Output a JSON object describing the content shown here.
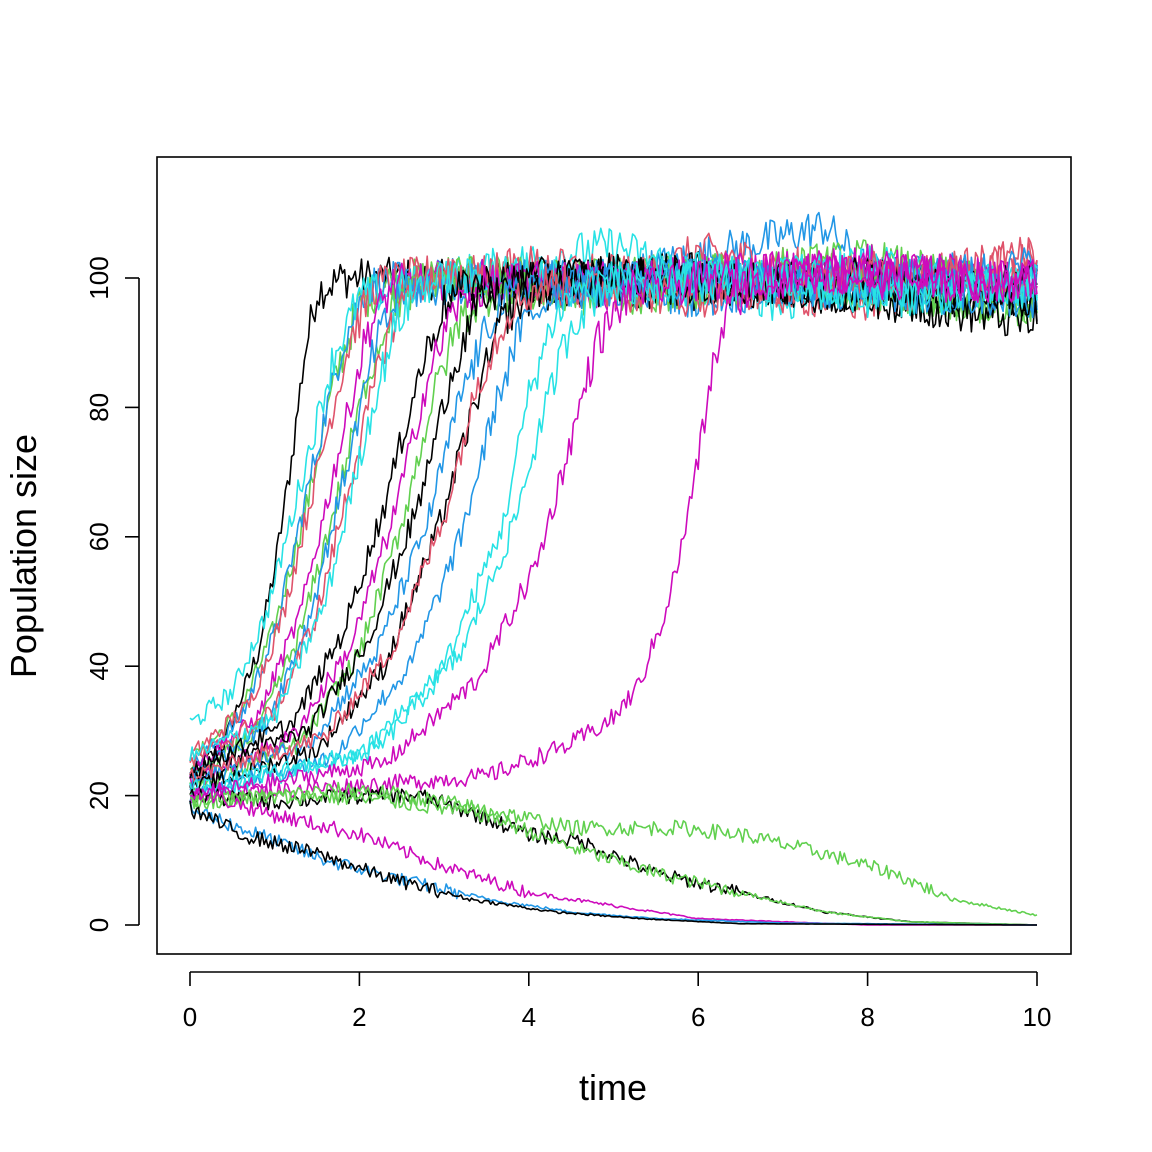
{
  "chart_data": {
    "type": "line",
    "title": "",
    "xlabel": "time",
    "ylabel": "Population size",
    "xlim": [
      0,
      10
    ],
    "ylim": [
      -4.5,
      118.5
    ],
    "x_ticks": [
      0,
      2,
      4,
      6,
      8,
      10
    ],
    "y_ticks": [
      0,
      20,
      40,
      60,
      80,
      100
    ],
    "x_tick_labels": [
      "0",
      "2",
      "4",
      "6",
      "8",
      "10"
    ],
    "y_tick_labels": [
      "0",
      "20",
      "40",
      "60",
      "80",
      "100"
    ],
    "grid": false,
    "legend": "none",
    "palette": [
      "#000000",
      "#DF536B",
      "#61D04F",
      "#2297E6",
      "#28E2E5",
      "#CD0BBC"
    ],
    "series": [
      {
        "color": "#000000",
        "values": [
          [
            0,
            23
          ],
          [
            0.4,
            28
          ],
          [
            0.8,
            42
          ],
          [
            1.0,
            55
          ],
          [
            1.2,
            72
          ],
          [
            1.35,
            88
          ],
          [
            1.5,
            98
          ],
          [
            1.8,
            100
          ],
          [
            2.5,
            100
          ],
          [
            4,
            99
          ],
          [
            6,
            98
          ],
          [
            8,
            100
          ],
          [
            10,
            97
          ]
        ]
      },
      {
        "color": "#61D04F",
        "values": [
          [
            0,
            25
          ],
          [
            0.6,
            33
          ],
          [
            1.0,
            46
          ],
          [
            1.4,
            66
          ],
          [
            1.7,
            84
          ],
          [
            2.0,
            96
          ],
          [
            2.4,
            100
          ],
          [
            4,
            99
          ],
          [
            6,
            101
          ],
          [
            8,
            98
          ],
          [
            10,
            96
          ]
        ]
      },
      {
        "color": "#2297E6",
        "values": [
          [
            0,
            24
          ],
          [
            0.6,
            32
          ],
          [
            1.0,
            45
          ],
          [
            1.4,
            68
          ],
          [
            1.8,
            90
          ],
          [
            2.1,
            99
          ],
          [
            3,
            100
          ],
          [
            5,
            100
          ],
          [
            7.5,
            108
          ],
          [
            8,
            101
          ],
          [
            10,
            99
          ]
        ]
      },
      {
        "color": "#DF536B",
        "values": [
          [
            0,
            26
          ],
          [
            0.7,
            34
          ],
          [
            1.1,
            48
          ],
          [
            1.5,
            70
          ],
          [
            1.9,
            91
          ],
          [
            2.2,
            99
          ],
          [
            3,
            101
          ],
          [
            5,
            98
          ],
          [
            6,
            104
          ],
          [
            8,
            100
          ],
          [
            10,
            103
          ]
        ]
      },
      {
        "color": "#28E2E5",
        "values": [
          [
            0,
            31
          ],
          [
            0.5,
            36
          ],
          [
            0.9,
            48
          ],
          [
            1.3,
            68
          ],
          [
            1.7,
            88
          ],
          [
            2.0,
            97
          ],
          [
            3,
            100
          ],
          [
            5,
            105
          ],
          [
            7,
            96
          ],
          [
            8,
            99
          ],
          [
            10,
            100
          ]
        ]
      },
      {
        "color": "#CD0BBC",
        "values": [
          [
            0,
            24
          ],
          [
            0.8,
            32
          ],
          [
            1.3,
            48
          ],
          [
            1.7,
            70
          ],
          [
            2.1,
            92
          ],
          [
            2.4,
            99
          ],
          [
            3.5,
            100
          ],
          [
            5,
            98
          ],
          [
            7,
            101
          ],
          [
            10,
            99
          ]
        ]
      },
      {
        "color": "#61D04F",
        "values": [
          [
            0,
            22
          ],
          [
            0.8,
            30
          ],
          [
            1.3,
            45
          ],
          [
            1.7,
            64
          ],
          [
            2.1,
            85
          ],
          [
            2.4,
            96
          ],
          [
            3,
            101
          ],
          [
            5,
            99
          ],
          [
            8,
            103
          ],
          [
            10,
            97
          ]
        ]
      },
      {
        "color": "#2297E6",
        "values": [
          [
            0,
            23
          ],
          [
            0.9,
            31
          ],
          [
            1.4,
            47
          ],
          [
            1.8,
            68
          ],
          [
            2.2,
            90
          ],
          [
            2.5,
            98
          ],
          [
            4,
            100
          ],
          [
            6,
            97
          ],
          [
            9,
            101
          ],
          [
            10,
            98
          ]
        ]
      },
      {
        "color": "#DF536B",
        "values": [
          [
            0,
            25
          ],
          [
            1.0,
            33
          ],
          [
            1.5,
            48
          ],
          [
            1.9,
            69
          ],
          [
            2.3,
            90
          ],
          [
            2.6,
            99
          ],
          [
            4,
            102
          ],
          [
            6,
            99
          ],
          [
            8,
            96
          ],
          [
            10,
            104
          ]
        ]
      },
      {
        "color": "#28E2E5",
        "values": [
          [
            0,
            26
          ],
          [
            1.0,
            32
          ],
          [
            1.6,
            50
          ],
          [
            2.0,
            72
          ],
          [
            2.4,
            92
          ],
          [
            2.7,
            99
          ],
          [
            4,
            101
          ],
          [
            6,
            98
          ],
          [
            8,
            102
          ],
          [
            10,
            98
          ]
        ]
      },
      {
        "color": "#000000",
        "values": [
          [
            0,
            24
          ],
          [
            1.2,
            31
          ],
          [
            1.8,
            45
          ],
          [
            2.3,
            65
          ],
          [
            2.7,
            85
          ],
          [
            3.0,
            96
          ],
          [
            3.3,
            99
          ],
          [
            5,
            101
          ],
          [
            7,
            98
          ],
          [
            9,
            97
          ],
          [
            10,
            101
          ]
        ]
      },
      {
        "color": "#CD0BBC",
        "values": [
          [
            0,
            22
          ],
          [
            1.2,
            29
          ],
          [
            1.9,
            43
          ],
          [
            2.4,
            63
          ],
          [
            2.8,
            84
          ],
          [
            3.1,
            95
          ],
          [
            3.5,
            99
          ],
          [
            5,
            100
          ],
          [
            8,
            102
          ],
          [
            10,
            99
          ]
        ]
      },
      {
        "color": "#61D04F",
        "values": [
          [
            0,
            21
          ],
          [
            1.3,
            28
          ],
          [
            2.0,
            42
          ],
          [
            2.5,
            62
          ],
          [
            2.9,
            83
          ],
          [
            3.2,
            94
          ],
          [
            3.6,
            98
          ],
          [
            5,
            97
          ],
          [
            7,
            100
          ],
          [
            10,
            95
          ]
        ]
      },
      {
        "color": "#000000",
        "values": [
          [
            0,
            23
          ],
          [
            1.4,
            30
          ],
          [
            2.1,
            44
          ],
          [
            2.7,
            65
          ],
          [
            3.1,
            86
          ],
          [
            3.4,
            96
          ],
          [
            3.8,
            99
          ],
          [
            6,
            101
          ],
          [
            8,
            97
          ],
          [
            10,
            93
          ]
        ]
      },
      {
        "color": "#2297E6",
        "values": [
          [
            0,
            22
          ],
          [
            1.4,
            28
          ],
          [
            2.2,
            42
          ],
          [
            2.8,
            62
          ],
          [
            3.2,
            82
          ],
          [
            3.6,
            95
          ],
          [
            4.0,
            99
          ],
          [
            6,
            100
          ],
          [
            8,
            98
          ],
          [
            10,
            97
          ]
        ]
      },
      {
        "color": "#000000",
        "values": [
          [
            0,
            21
          ],
          [
            1.5,
            27
          ],
          [
            2.3,
            40
          ],
          [
            2.9,
            60
          ],
          [
            3.4,
            82
          ],
          [
            3.7,
            94
          ],
          [
            4.1,
            98
          ],
          [
            6,
            99
          ],
          [
            8,
            100
          ],
          [
            10,
            96
          ]
        ]
      },
      {
        "color": "#DF536B",
        "values": [
          [
            0,
            23
          ],
          [
            1.6,
            29
          ],
          [
            2.4,
            43
          ],
          [
            3.0,
            63
          ],
          [
            3.4,
            84
          ],
          [
            3.8,
            96
          ],
          [
            4.2,
            99
          ],
          [
            6,
            97
          ],
          [
            8,
            101
          ],
          [
            10,
            100
          ]
        ]
      },
      {
        "color": "#2297E6",
        "values": [
          [
            0,
            20
          ],
          [
            1.7,
            26
          ],
          [
            2.6,
            40
          ],
          [
            3.2,
            60
          ],
          [
            3.6,
            80
          ],
          [
            3.9,
            92
          ],
          [
            4.3,
            98
          ],
          [
            6,
            100
          ],
          [
            8,
            99
          ],
          [
            10,
            102
          ]
        ]
      },
      {
        "color": "#28E2E5",
        "values": [
          [
            0,
            20
          ],
          [
            2.0,
            26
          ],
          [
            3.0,
            40
          ],
          [
            3.7,
            62
          ],
          [
            4.0,
            82
          ],
          [
            4.3,
            94
          ],
          [
            4.6,
            99
          ],
          [
            6,
            101
          ],
          [
            8,
            97
          ],
          [
            10,
            98
          ]
        ]
      },
      {
        "color": "#28E2E5",
        "values": [
          [
            0,
            21
          ],
          [
            2.2,
            27
          ],
          [
            3.2,
            42
          ],
          [
            3.8,
            61
          ],
          [
            4.2,
            80
          ],
          [
            4.5,
            93
          ],
          [
            4.9,
            99
          ],
          [
            7,
            100
          ],
          [
            9,
            98
          ],
          [
            10,
            99
          ]
        ]
      },
      {
        "color": "#CD0BBC",
        "values": [
          [
            0,
            20
          ],
          [
            2.3,
            25
          ],
          [
            3.4,
            38
          ],
          [
            4.1,
            56
          ],
          [
            4.5,
            75
          ],
          [
            4.8,
            90
          ],
          [
            5.2,
            98
          ],
          [
            7,
            101
          ],
          [
            9,
            99
          ],
          [
            10,
            100
          ]
        ]
      },
      {
        "color": "#CD0BBC",
        "values": [
          [
            0,
            20
          ],
          [
            2.5,
            22
          ],
          [
            3.5,
            23
          ],
          [
            4.5,
            28
          ],
          [
            5.0,
            32
          ],
          [
            5.3,
            37
          ],
          [
            5.6,
            48
          ],
          [
            5.8,
            58
          ],
          [
            6.0,
            72
          ],
          [
            6.2,
            88
          ],
          [
            6.4,
            97
          ],
          [
            7,
            100
          ],
          [
            8,
            101
          ],
          [
            10,
            99
          ]
        ]
      },
      {
        "color": "#000000",
        "values": [
          [
            0,
            20
          ],
          [
            1.0,
            19
          ],
          [
            2.0,
            20
          ],
          [
            2.7,
            20
          ],
          [
            3.4,
            17
          ],
          [
            4.0,
            14
          ],
          [
            4.6,
            13
          ],
          [
            5.5,
            8
          ],
          [
            6.5,
            5
          ],
          [
            7.5,
            2
          ],
          [
            8.5,
            0.5
          ],
          [
            10,
            0
          ]
        ]
      },
      {
        "color": "#61D04F",
        "values": [
          [
            0,
            19
          ],
          [
            1.0,
            20
          ],
          [
            2.0,
            21
          ],
          [
            3.0,
            19
          ],
          [
            3.8,
            17
          ],
          [
            4.5,
            15
          ],
          [
            5.0,
            15
          ],
          [
            5.8,
            15
          ],
          [
            6.5,
            14
          ],
          [
            7.5,
            11
          ],
          [
            8.3,
            8
          ],
          [
            9.0,
            4
          ],
          [
            10,
            1.5
          ]
        ]
      },
      {
        "color": "#61D04F",
        "values": [
          [
            0,
            19
          ],
          [
            1.5,
            20
          ],
          [
            2.5,
            19
          ],
          [
            3.5,
            17
          ],
          [
            4.5,
            12
          ],
          [
            5.5,
            8
          ],
          [
            6.5,
            5
          ],
          [
            7.5,
            2
          ],
          [
            8.5,
            0.5
          ],
          [
            10,
            0
          ]
        ]
      },
      {
        "color": "#CD0BBC",
        "values": [
          [
            0,
            21
          ],
          [
            1.0,
            17
          ],
          [
            2.0,
            14
          ],
          [
            3.0,
            9
          ],
          [
            4.0,
            5
          ],
          [
            5.0,
            3
          ],
          [
            6.0,
            1
          ],
          [
            7.0,
            0.5
          ],
          [
            8.0,
            0
          ],
          [
            10,
            0
          ]
        ]
      },
      {
        "color": "#2297E6",
        "values": [
          [
            0,
            18
          ],
          [
            0.8,
            14
          ],
          [
            1.6,
            10
          ],
          [
            2.5,
            7
          ],
          [
            3.5,
            4
          ],
          [
            4.5,
            2
          ],
          [
            5.5,
            1
          ],
          [
            7.0,
            0.3
          ],
          [
            10,
            0
          ]
        ]
      },
      {
        "color": "#000000",
        "values": [
          [
            0,
            18
          ],
          [
            0.6,
            14
          ],
          [
            1.5,
            11
          ],
          [
            2.4,
            7
          ],
          [
            3.3,
            4
          ],
          [
            4.3,
            2
          ],
          [
            5.3,
            1
          ],
          [
            6.5,
            0.2
          ],
          [
            10,
            0
          ]
        ]
      }
    ]
  }
}
